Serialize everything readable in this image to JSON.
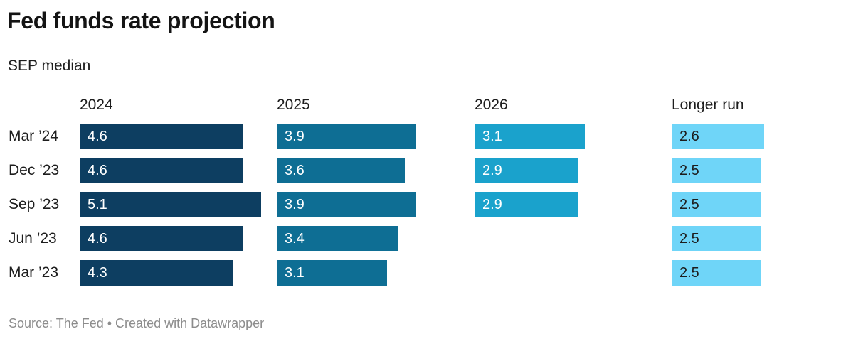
{
  "header": {
    "title": "Fed funds rate projection",
    "subtitle": "SEP median"
  },
  "footer": {
    "text": "Source: The Fed • Created with Datawrapper"
  },
  "colors": {
    "bar_2024": "#0d3e61",
    "bar_2025": "#0e6e94",
    "bar_2026": "#1aa2cc",
    "bar_longer_run": "#6fd5f8",
    "text_dark": "#1d1d1d",
    "text_on_dark_bar": "#ffffff",
    "footer_gray": "#8c8c8c"
  },
  "chart_data": {
    "type": "bar",
    "title": "Fed funds rate projection",
    "subtitle": "SEP median",
    "orientation": "horizontal",
    "grid": false,
    "legend": "none",
    "xlim": [
      0,
      5.5
    ],
    "value_unit": "percent",
    "columns": [
      {
        "key": "y2024",
        "label": "2024",
        "color": "#0d3e61",
        "value_text_color": "#ffffff"
      },
      {
        "key": "y2025",
        "label": "2025",
        "color": "#0e6e94",
        "value_text_color": "#ffffff"
      },
      {
        "key": "y2026",
        "label": "2026",
        "color": "#1aa2cc",
        "value_text_color": "#ffffff"
      },
      {
        "key": "longer_run",
        "label": "Longer run",
        "color": "#6fd5f8",
        "value_text_color": "#1d1d1d"
      }
    ],
    "rows": [
      {
        "label": "Mar ’24",
        "values": {
          "y2024": 4.6,
          "y2025": 3.9,
          "y2026": 3.1,
          "longer_run": 2.6
        }
      },
      {
        "label": "Dec ’23",
        "values": {
          "y2024": 4.6,
          "y2025": 3.6,
          "y2026": 2.9,
          "longer_run": 2.5
        }
      },
      {
        "label": "Sep ’23",
        "values": {
          "y2024": 5.1,
          "y2025": 3.9,
          "y2026": 2.9,
          "longer_run": 2.5
        }
      },
      {
        "label": "Jun ’23",
        "values": {
          "y2024": 4.6,
          "y2025": 3.4,
          "y2026": null,
          "longer_run": 2.5
        }
      },
      {
        "label": "Mar ’23",
        "values": {
          "y2024": 4.3,
          "y2025": 3.1,
          "y2026": null,
          "longer_run": 2.5
        }
      }
    ]
  }
}
